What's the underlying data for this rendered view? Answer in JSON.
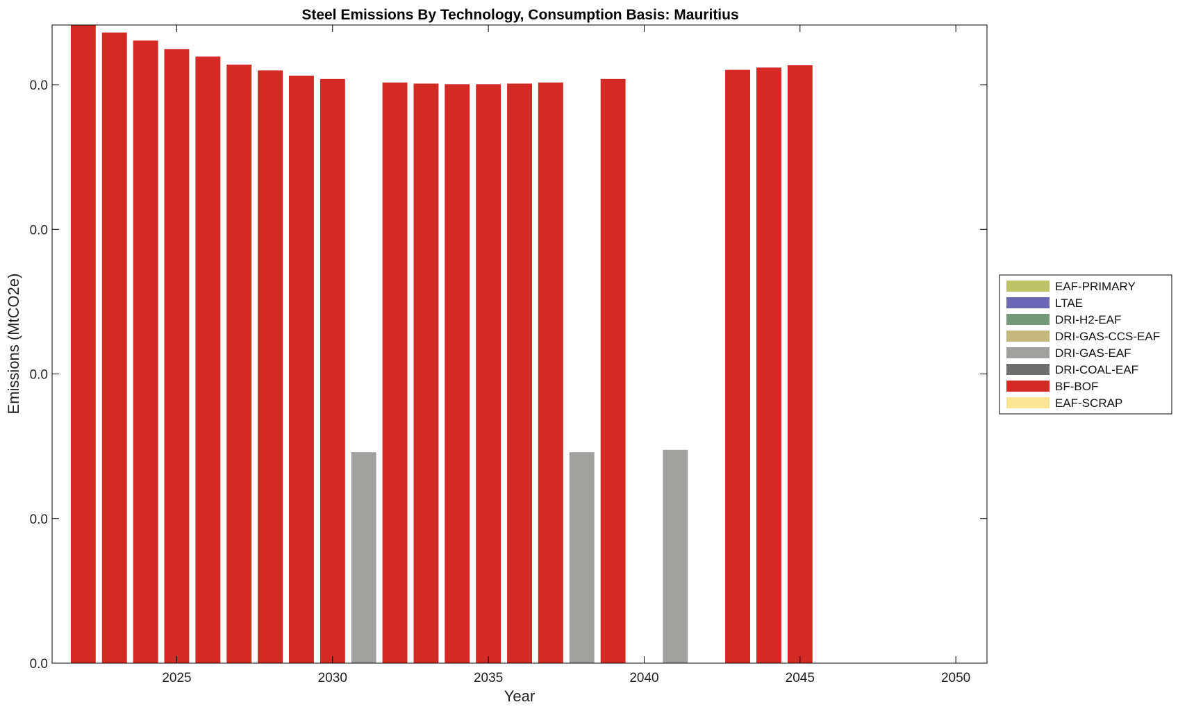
{
  "chart_data": {
    "type": "bar",
    "title": "Steel Emissions By Technology, Consumption Basis: Mauritius",
    "xlabel": "Year",
    "ylabel": "Emissions (MtCO2e)",
    "x_ticks": [
      "2025",
      "2030",
      "2035",
      "2040",
      "2045",
      "2050"
    ],
    "y_ticks": [
      "0.0",
      "0.0",
      "0.0",
      "0.0",
      "0.0"
    ],
    "xlim": [
      2021,
      2051
    ],
    "ylim": [
      0,
      1.11
    ],
    "grid": false,
    "legend_position": "right",
    "legend": [
      {
        "name": "EAF-PRIMARY",
        "color": "#bcc46a"
      },
      {
        "name": "LTAE",
        "color": "#6c66b4"
      },
      {
        "name": "DRI-H2-EAF",
        "color": "#74977a"
      },
      {
        "name": "DRI-GAS-CCS-EAF",
        "color": "#c3b77b"
      },
      {
        "name": "DRI-GAS-EAF",
        "color": "#a0a09f"
      },
      {
        "name": "DRI-COAL-EAF",
        "color": "#6e6e6e"
      },
      {
        "name": "BF-BOF",
        "color": "#d42a25"
      },
      {
        "name": "EAF-SCRAP",
        "color": "#fde596"
      }
    ],
    "bars": [
      {
        "year": 2022,
        "series": "BF-BOF",
        "value": 1.11
      },
      {
        "year": 2023,
        "series": "BF-BOF",
        "value": 1.097
      },
      {
        "year": 2024,
        "series": "BF-BOF",
        "value": 1.083
      },
      {
        "year": 2025,
        "series": "BF-BOF",
        "value": 1.068
      },
      {
        "year": 2026,
        "series": "BF-BOF",
        "value": 1.055
      },
      {
        "year": 2027,
        "series": "BF-BOF",
        "value": 1.041
      },
      {
        "year": 2028,
        "series": "BF-BOF",
        "value": 1.031
      },
      {
        "year": 2029,
        "series": "BF-BOF",
        "value": 1.022
      },
      {
        "year": 2030,
        "series": "BF-BOF",
        "value": 1.016
      },
      {
        "year": 2031,
        "series": "DRI-GAS-EAF",
        "value": 0.367
      },
      {
        "year": 2032,
        "series": "BF-BOF",
        "value": 1.01
      },
      {
        "year": 2033,
        "series": "BF-BOF",
        "value": 1.008
      },
      {
        "year": 2034,
        "series": "BF-BOF",
        "value": 1.007
      },
      {
        "year": 2035,
        "series": "BF-BOF",
        "value": 1.007
      },
      {
        "year": 2036,
        "series": "BF-BOF",
        "value": 1.008
      },
      {
        "year": 2037,
        "series": "BF-BOF",
        "value": 1.01
      },
      {
        "year": 2038,
        "series": "DRI-GAS-EAF",
        "value": 0.367
      },
      {
        "year": 2039,
        "series": "BF-BOF",
        "value": 1.016
      },
      {
        "year": 2041,
        "series": "DRI-GAS-EAF",
        "value": 0.371
      },
      {
        "year": 2043,
        "series": "BF-BOF",
        "value": 1.032
      },
      {
        "year": 2044,
        "series": "BF-BOF",
        "value": 1.036
      },
      {
        "year": 2045,
        "series": "BF-BOF",
        "value": 1.04
      }
    ]
  }
}
